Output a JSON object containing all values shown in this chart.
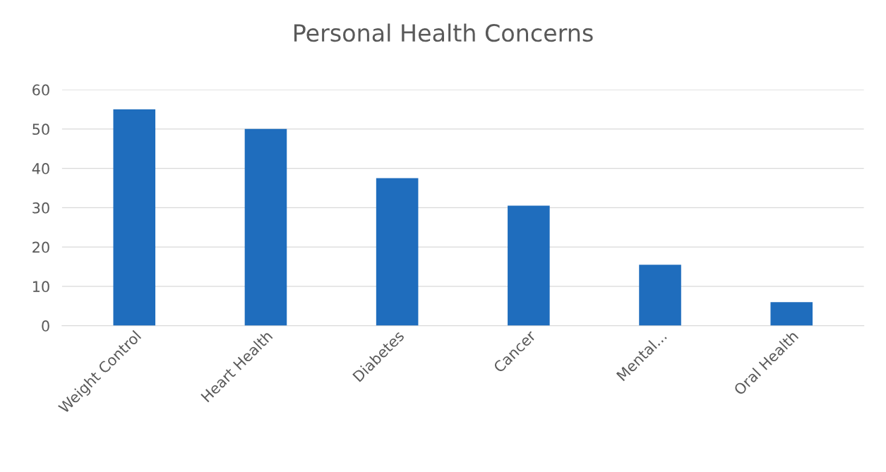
{
  "chart_data": {
    "type": "bar",
    "title": "Personal Health Concerns",
    "categories": [
      "Weight Control",
      "Heart Health",
      "Diabetes",
      "Cancer",
      "Mental...",
      "Oral Health"
    ],
    "values": [
      55,
      50,
      37.5,
      30.5,
      15.5,
      6
    ],
    "color": "#1f6dbd",
    "ylim": [
      0,
      60
    ],
    "yticks": [
      0,
      10,
      20,
      30,
      40,
      50,
      60
    ],
    "grid": "y",
    "legend": false
  }
}
